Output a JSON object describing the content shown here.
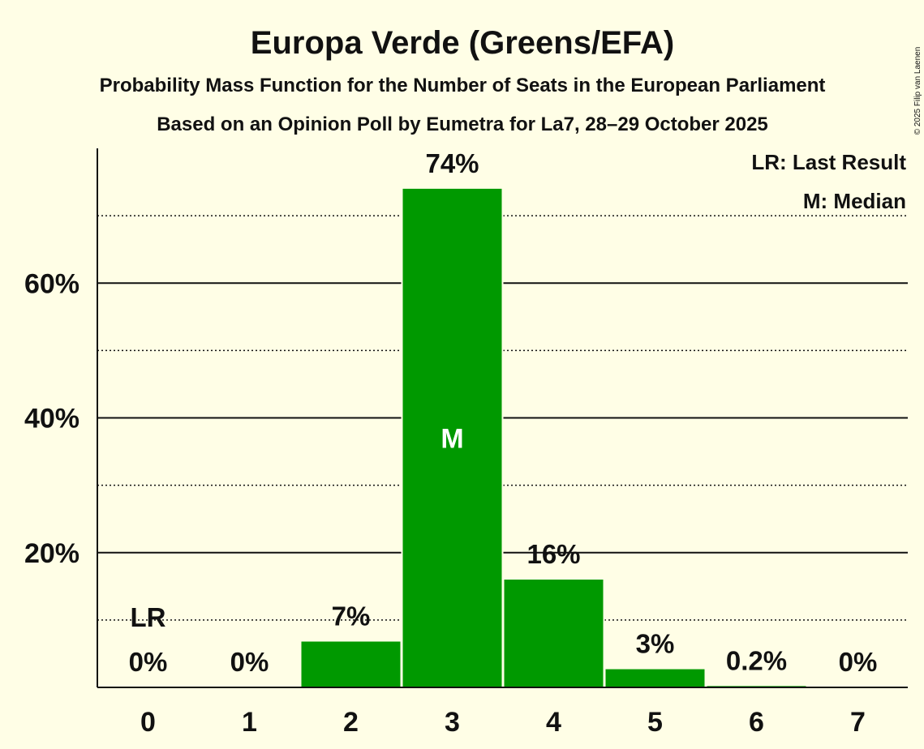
{
  "chart_data": {
    "type": "bar",
    "title": "Europa Verde (Greens/EFA)",
    "subtitle": "Probability Mass Function for the Number of Seats in the European Parliament",
    "subtitle2": "Based on an Opinion Poll by Eumetra for La7, 28–29 October 2025",
    "copyright": "© 2025 Filip van Laenen",
    "categories": [
      "0",
      "1",
      "2",
      "3",
      "4",
      "5",
      "6",
      "7"
    ],
    "values": [
      0,
      0,
      6.8,
      74,
      16,
      2.7,
      0.2,
      0
    ],
    "value_labels": [
      "0%",
      "0%",
      "7%",
      "74%",
      "16%",
      "3%",
      "0.2%",
      "0%"
    ],
    "ylim": [
      0,
      80
    ],
    "y_ticks": [
      20,
      40,
      60
    ],
    "y_tick_labels": [
      "20%",
      "40%",
      "60%"
    ],
    "minor_gridlines": [
      10,
      30,
      50,
      70
    ],
    "last_result_seat": "0",
    "last_result_label": "LR",
    "median_seat": "3",
    "median_label": "M",
    "legend": [
      "LR: Last Result",
      "M: Median"
    ],
    "legend_position": "top-right",
    "bar_color": "#009900"
  }
}
